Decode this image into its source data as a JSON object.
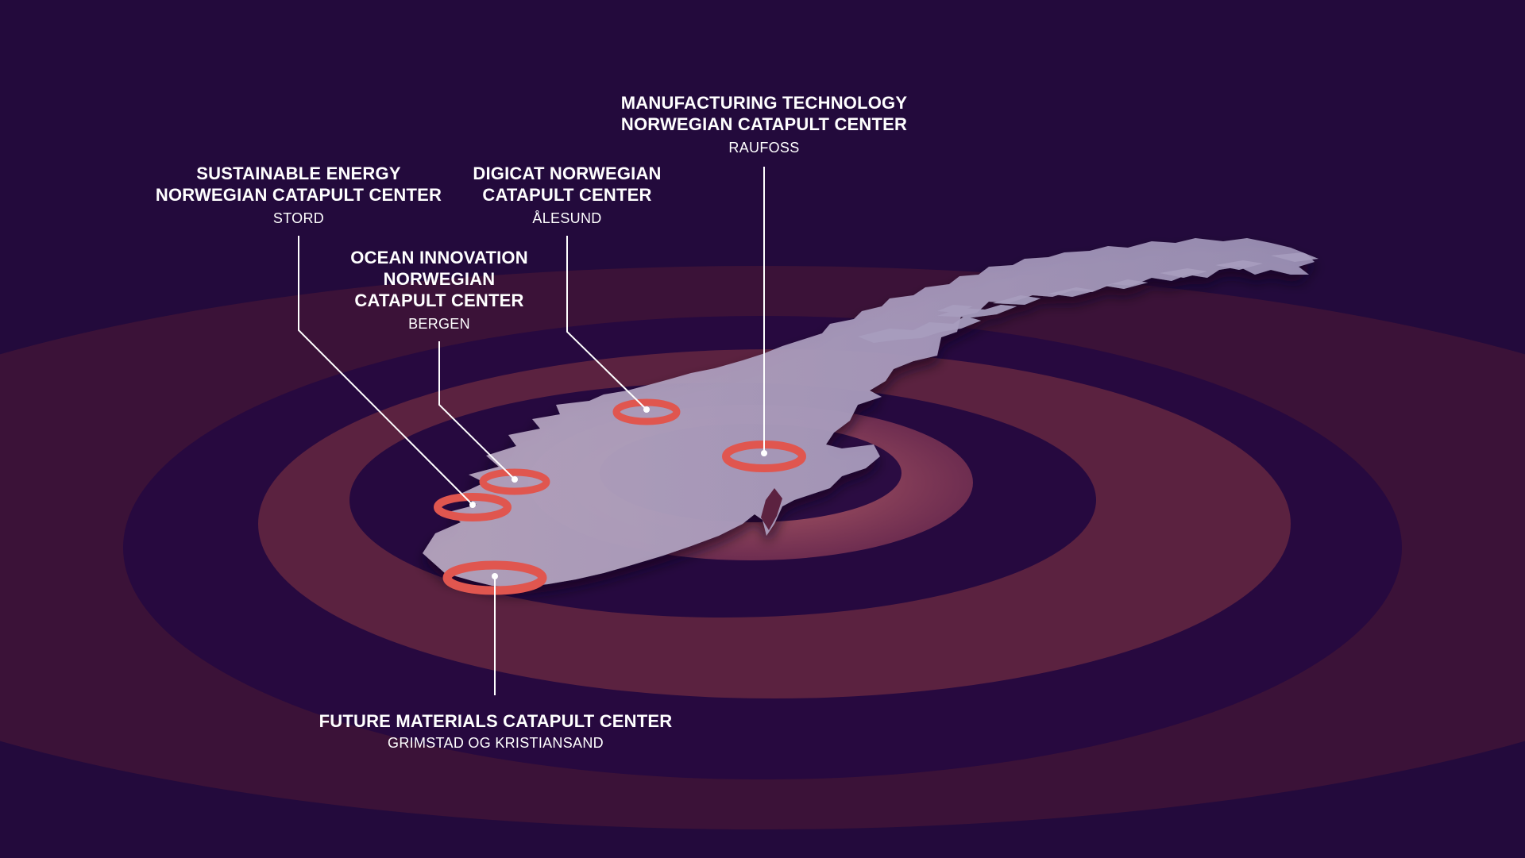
{
  "colors": {
    "background": "#230a3c",
    "ring_far": "#3a1138",
    "ring_dark": "#2a0c45",
    "ring_mid": "#5c2140",
    "ring_inner_glow": "#c56868",
    "land": "#a196b8",
    "marker": "#e0564f",
    "line": "#ffffff"
  },
  "centers": [
    {
      "id": "manufacturing",
      "name_lines": [
        "MANUFACTURING TECHNOLOGY",
        "NORWEGIAN CATAPULT CENTER"
      ],
      "city": "RAUFOSS"
    },
    {
      "id": "sustainable-energy",
      "name_lines": [
        "SUSTAINABLE ENERGY",
        "NORWEGIAN CATAPULT CENTER"
      ],
      "city": "STORD"
    },
    {
      "id": "digicat",
      "name_lines": [
        "DIGICAT NORWEGIAN",
        "CATAPULT CENTER"
      ],
      "city": "ÅLESUND"
    },
    {
      "id": "ocean-innovation",
      "name_lines": [
        "OCEAN INNOVATION",
        "NORWEGIAN",
        "CATAPULT CENTER"
      ],
      "city": "BERGEN"
    },
    {
      "id": "future-materials",
      "name_lines": [
        "FUTURE MATERIALS CATAPULT CENTER"
      ],
      "city": "GRIMSTAD OG KRISTIANSAND"
    }
  ],
  "icons": {
    "marker": "location-ring-icon",
    "map": "norway-map"
  }
}
